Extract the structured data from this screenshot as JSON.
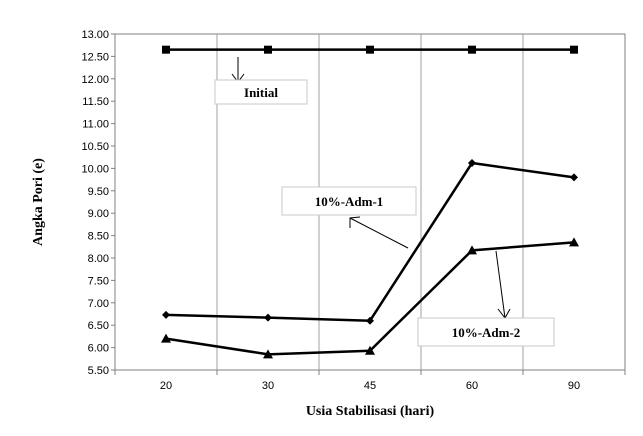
{
  "chart_data": {
    "type": "line",
    "categories": [
      "20",
      "30",
      "45",
      "60",
      "90"
    ],
    "xlabel": "Usia Stabilisasi (hari)",
    "ylabel": "Angka Pori (e)",
    "ylim": [
      5.5,
      13.0
    ],
    "ystep": 0.5,
    "y_tick_labels": [
      "5.50",
      "6.00",
      "6.50",
      "7.00",
      "7.50",
      "8.00",
      "8.50",
      "9.00",
      "9.50",
      "10.00",
      "10.50",
      "11.00",
      "11.50",
      "12.00",
      "12.50",
      "13.00"
    ],
    "grid": {
      "vertical": true,
      "horizontal": false
    },
    "series": [
      {
        "name": "Initial",
        "marker": "square",
        "values": [
          12.65,
          12.65,
          12.65,
          12.65,
          12.65
        ]
      },
      {
        "name": "10%-Adm-1",
        "marker": "diamond",
        "values": [
          6.73,
          6.67,
          6.6,
          10.12,
          9.8
        ]
      },
      {
        "name": "10%-Adm-2",
        "marker": "triangle",
        "values": [
          6.2,
          5.85,
          5.93,
          8.17,
          8.35
        ]
      }
    ],
    "annotations": [
      {
        "text": "Initial",
        "series": 0
      },
      {
        "text": "10%-Adm-1",
        "series": 1
      },
      {
        "text": "10%-Adm-2",
        "series": 2
      }
    ],
    "colors": {
      "line": "#000000",
      "grid": "#a0a0a0",
      "frame": "#808080"
    }
  }
}
